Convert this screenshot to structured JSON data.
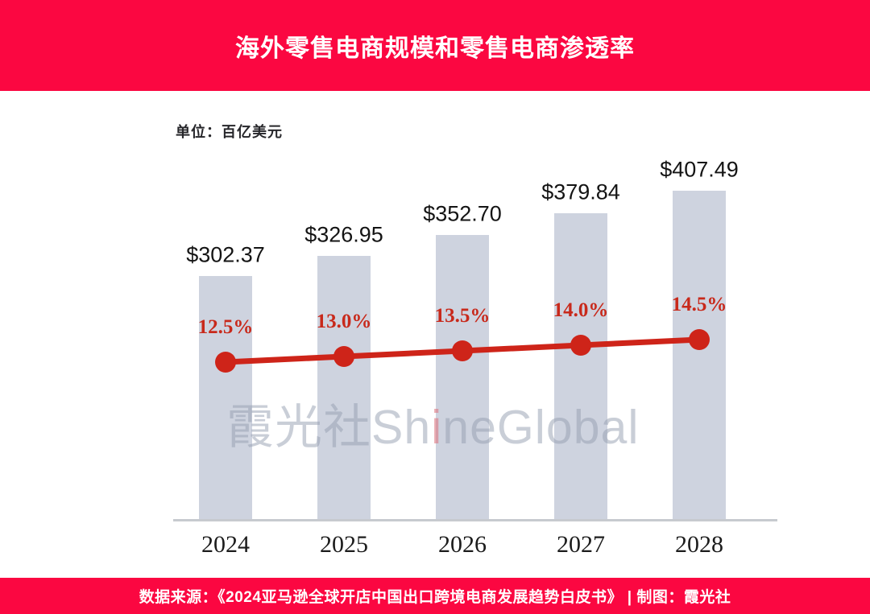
{
  "header": {
    "title": "海外零售电商规模和零售电商渗透率",
    "background": "#FB0741",
    "text_color": "#FFFFFF"
  },
  "chart": {
    "unit_label": "单位：百亿美元",
    "watermark": {
      "part1": "霞光社Sh",
      "accent": "i",
      "part2": "neGlobal"
    }
  },
  "chart_data": {
    "type": "bar",
    "title": "海外零售电商规模和零售电商渗透率",
    "categories": [
      "2024",
      "2025",
      "2026",
      "2027",
      "2028"
    ],
    "series": [
      {
        "name": "海外零售电商规模",
        "type": "bar",
        "unit": "百亿美元",
        "values": [
          302.37,
          326.95,
          352.7,
          379.84,
          407.49
        ],
        "labels": [
          "$302.37",
          "$326.95",
          "$352.70",
          "$379.84",
          "$407.49"
        ],
        "color": "#CED3DF"
      },
      {
        "name": "零售电商渗透率",
        "type": "line",
        "unit": "%",
        "values": [
          12.5,
          13.0,
          13.5,
          14.0,
          14.5
        ],
        "labels": [
          "12.5%",
          "13.0%",
          "13.5%",
          "14.0%",
          "14.5%"
        ],
        "color": "#CE2419",
        "label_color": "#C8291B"
      }
    ],
    "xlabel": "",
    "ylabel": "百亿美元",
    "ylim": [
      0,
      420
    ],
    "grid": false,
    "legend": false
  },
  "footer": {
    "text": "数据来源：《2024亚马逊全球开店中国出口跨境电商发展趋势白皮书》 | 制图：霞光社",
    "background": "#FB0741",
    "text_color": "#FFFFFF"
  }
}
